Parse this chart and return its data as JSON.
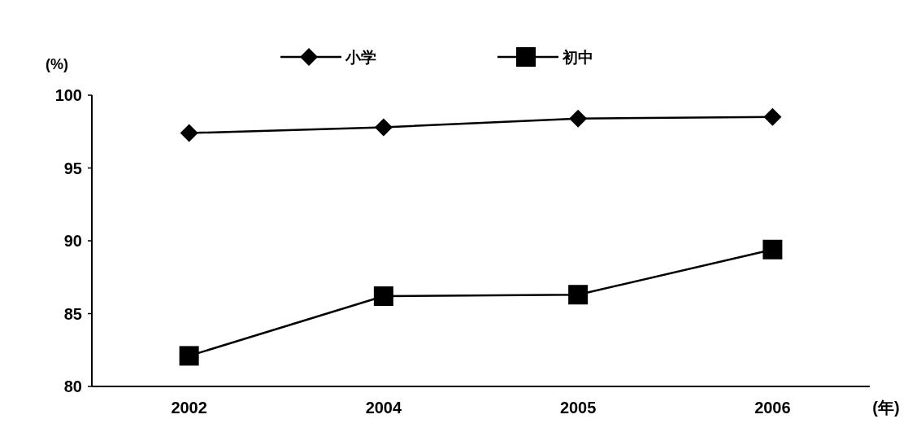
{
  "chart_data": {
    "type": "line",
    "xlabel": "(年)",
    "ylabel": "(%)",
    "categories": [
      "2002",
      "2004",
      "2005",
      "2006"
    ],
    "series": [
      {
        "name": "小学",
        "color": "#000000",
        "marker": "diamond",
        "values": [
          97.4,
          97.8,
          98.4,
          98.5
        ]
      },
      {
        "name": "初中",
        "color": "#000000",
        "marker": "square",
        "values": [
          82.1,
          86.2,
          86.3,
          89.4
        ]
      }
    ],
    "ylim": [
      80,
      100
    ],
    "yticks": [
      80,
      85,
      90,
      95,
      100
    ],
    "legend": "top",
    "grid": false
  }
}
